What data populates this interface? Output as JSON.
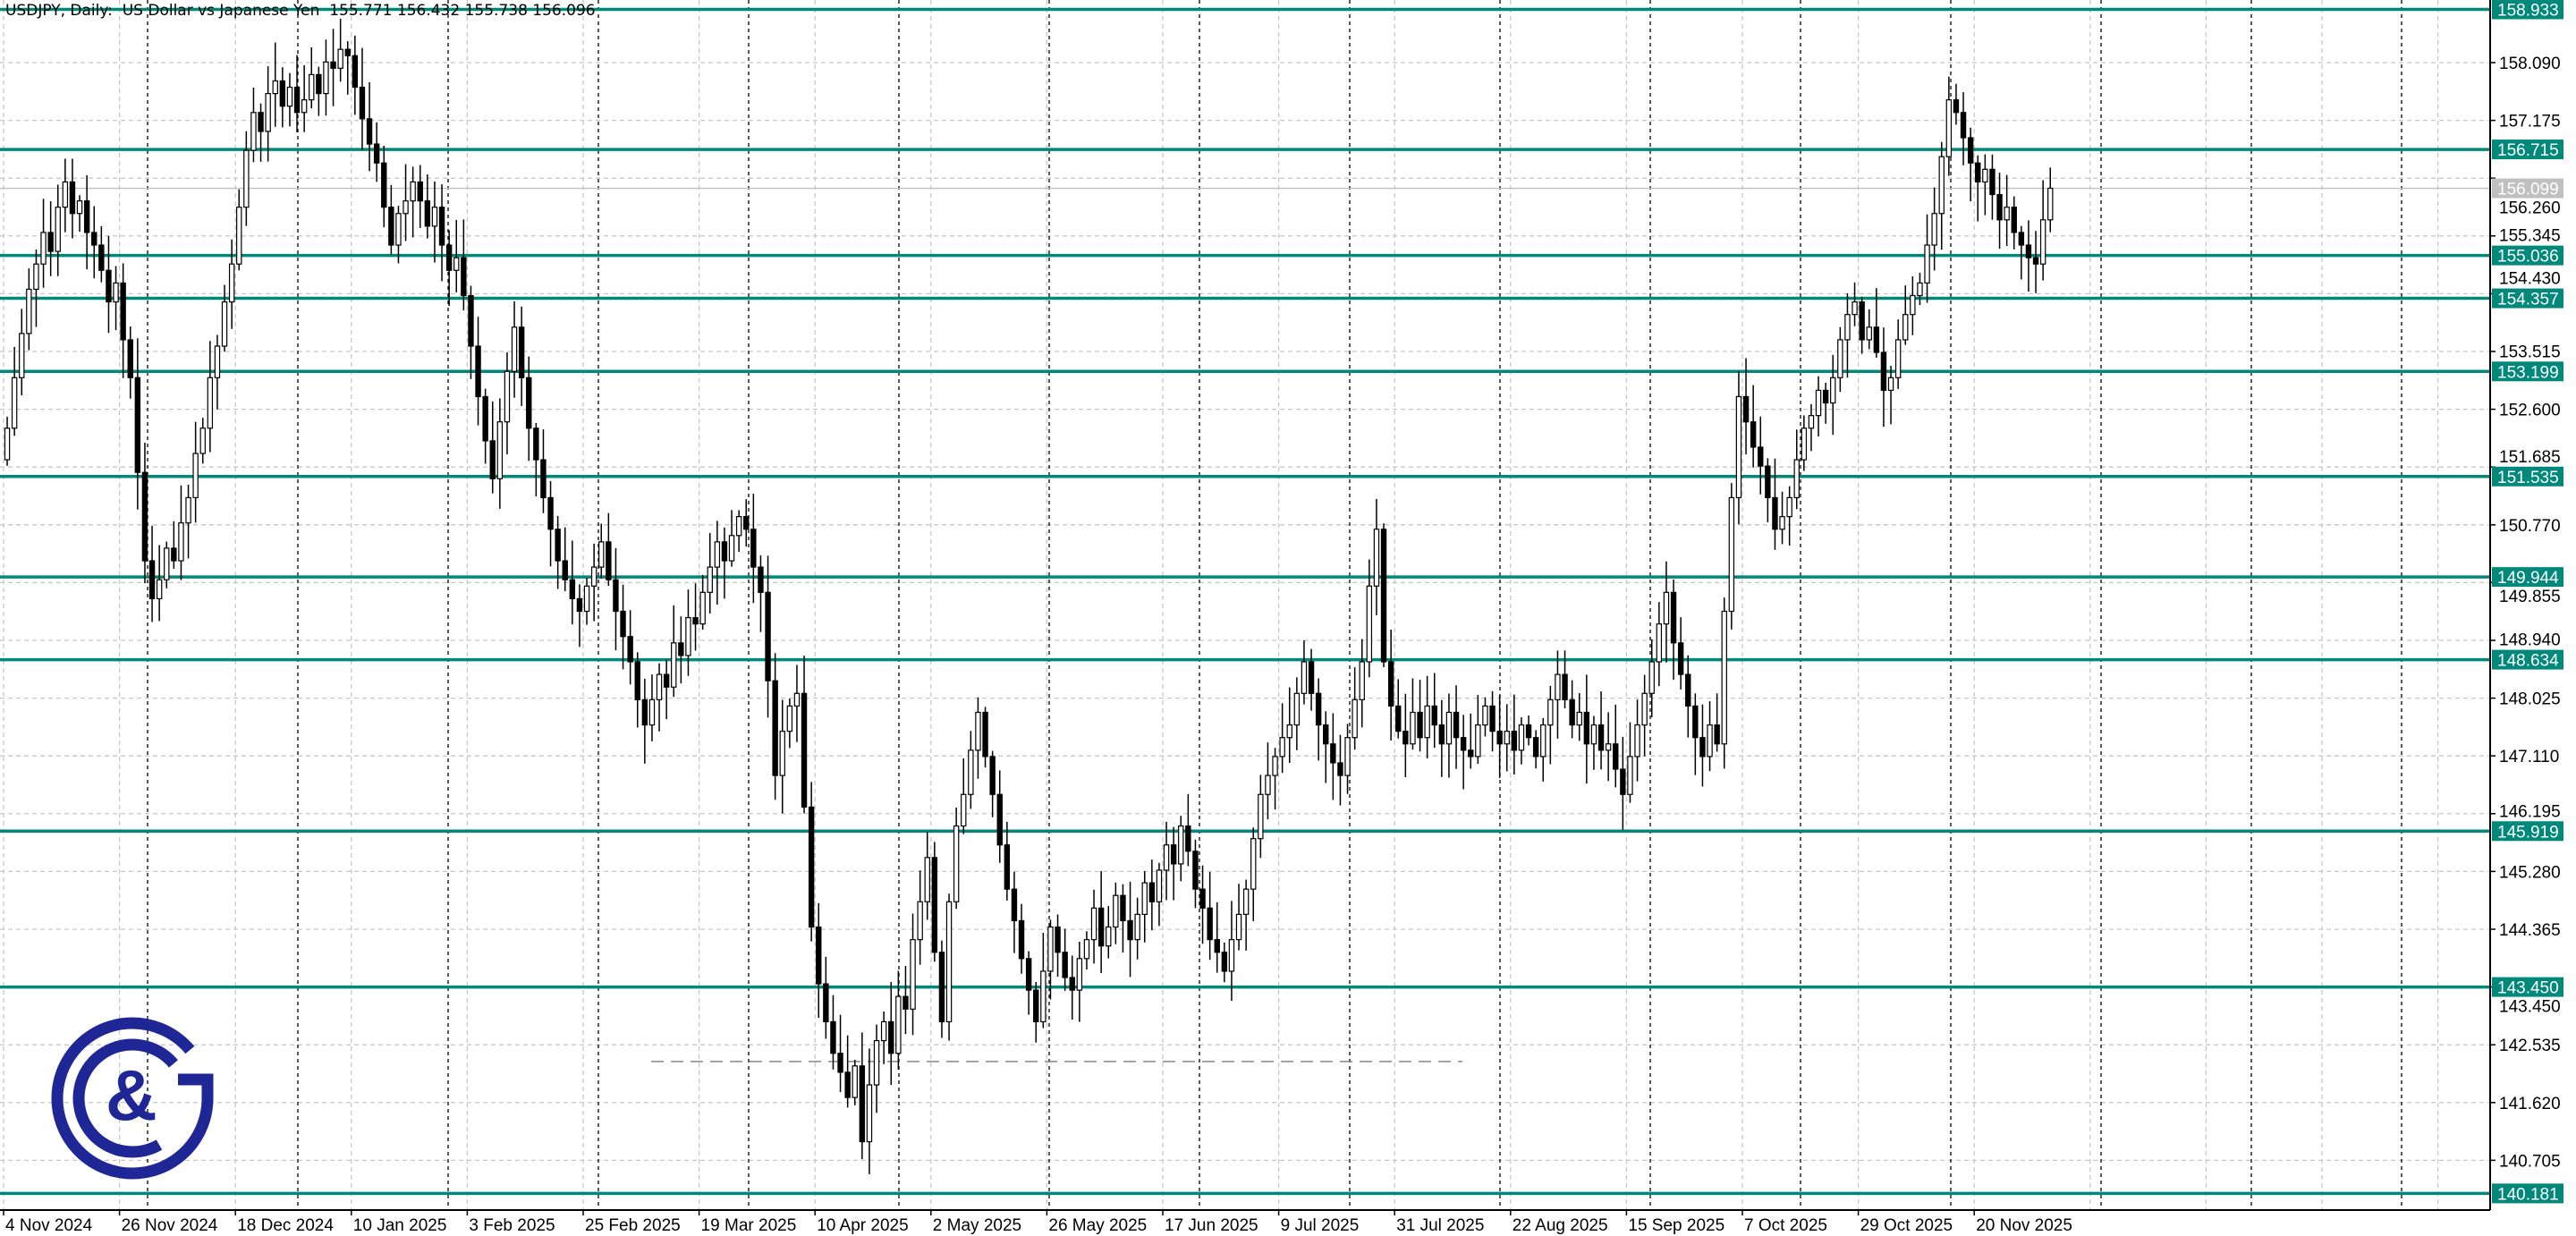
{
  "header": {
    "title": "USDJPY, Daily:  US Dollar vs Japanese Yen  155.771 156.432 155.738 156.096"
  },
  "colors": {
    "level_line": "#00897b",
    "level_label_bg": "#00897b",
    "current_price_bg": "#c0c0c0",
    "bull_body": "#ffffff",
    "bear_body": "#000000",
    "logo": "#1f2696"
  },
  "logo": {
    "text": "G&G",
    "icon": "gg-logo-icon"
  },
  "chart_data": {
    "type": "candlestick",
    "symbol": "USDJPY",
    "timeframe": "Daily",
    "ylim": [
      140.0,
      159.1
    ],
    "grid": true,
    "y_ticks": [
      "158.090",
      "157.175",
      "156.260",
      "155.345",
      "154.430",
      "153.515",
      "152.600",
      "151.685",
      "150.770",
      "149.855",
      "148.940",
      "148.025",
      "147.110",
      "146.195",
      "145.280",
      "144.365",
      "143.450",
      "142.535",
      "141.620",
      "140.705"
    ],
    "x_tick_labels": [
      "4 Nov 2024",
      "26 Nov 2024",
      "18 Dec 2024",
      "10 Jan 2025",
      "3 Feb 2025",
      "25 Feb 2025",
      "19 Mar 2025",
      "10 Apr 2025",
      "2 May 2025",
      "26 May 2025",
      "17 Jun 2025",
      "9 Jul 2025",
      "31 Jul 2025",
      "22 Aug 2025",
      "15 Sep 2025",
      "7 Oct 2025",
      "29 Oct 2025",
      "20 Nov 2025"
    ],
    "levels": [
      "158.933",
      "156.715",
      "155.036",
      "154.357",
      "153.199",
      "151.535",
      "149.944",
      "148.634",
      "145.919",
      "143.450",
      "140.181"
    ],
    "current_price": "156.099",
    "dashed_level": 142.27,
    "close": [
      152.3,
      153.1,
      153.8,
      154.5,
      154.9,
      155.4,
      155.1,
      155.8,
      156.2,
      155.7,
      155.9,
      155.4,
      155.2,
      154.8,
      154.3,
      154.6,
      153.7,
      153.1,
      151.6,
      150.2,
      149.6,
      149.9,
      150.4,
      150.2,
      150.8,
      151.2,
      151.9,
      152.3,
      153.1,
      153.6,
      154.3,
      154.9,
      155.8,
      156.7,
      157.3,
      157.0,
      157.6,
      157.8,
      157.4,
      157.7,
      157.3,
      157.5,
      157.9,
      157.6,
      158.1,
      158.0,
      158.3,
      158.2,
      157.7,
      157.2,
      156.8,
      156.5,
      155.8,
      155.2,
      155.7,
      155.9,
      156.2,
      155.9,
      155.5,
      155.8,
      155.2,
      154.8,
      155.0,
      154.4,
      153.6,
      152.8,
      152.1,
      151.5,
      152.4,
      153.2,
      153.9,
      153.1,
      152.3,
      151.8,
      151.2,
      150.7,
      150.2,
      149.9,
      149.6,
      149.4,
      149.8,
      150.1,
      150.5,
      149.9,
      149.4,
      149.0,
      148.6,
      148.0,
      147.6,
      148.0,
      148.4,
      148.2,
      148.9,
      148.7,
      149.3,
      149.2,
      149.7,
      150.1,
      150.5,
      150.2,
      150.6,
      150.9,
      150.7,
      150.1,
      149.7,
      148.3,
      146.8,
      147.5,
      147.9,
      148.1,
      146.3,
      144.4,
      143.5,
      142.9,
      142.4,
      142.1,
      141.7,
      142.2,
      141.0,
      141.9,
      142.6,
      142.9,
      142.4,
      143.3,
      143.1,
      144.2,
      144.8,
      145.5,
      144.0,
      142.9,
      144.8,
      146.0,
      146.5,
      147.2,
      147.8,
      147.1,
      146.5,
      145.7,
      145.0,
      144.5,
      143.9,
      143.4,
      142.9,
      143.7,
      144.4,
      144.0,
      143.6,
      143.4,
      143.9,
      144.2,
      144.7,
      144.1,
      144.4,
      144.9,
      144.5,
      144.2,
      144.6,
      145.1,
      144.8,
      145.3,
      145.7,
      145.4,
      146.0,
      145.6,
      145.0,
      144.7,
      144.2,
      144.0,
      143.7,
      144.2,
      144.6,
      145.0,
      145.8,
      146.5,
      146.8,
      147.1,
      147.4,
      147.6,
      148.1,
      148.6,
      148.1,
      147.6,
      147.3,
      147.0,
      146.8,
      147.4,
      148.0,
      148.6,
      149.8,
      150.7,
      148.6,
      147.9,
      147.5,
      147.3,
      147.8,
      147.4,
      147.9,
      147.6,
      147.3,
      147.8,
      147.4,
      147.2,
      147.1,
      147.6,
      147.9,
      147.5,
      147.3,
      147.5,
      147.2,
      147.6,
      147.4,
      147.1,
      147.6,
      148.0,
      148.4,
      148.0,
      147.6,
      147.8,
      147.3,
      147.6,
      147.2,
      147.3,
      146.9,
      146.5,
      147.1,
      147.6,
      148.1,
      148.6,
      149.2,
      149.7,
      148.9,
      148.4,
      147.9,
      147.4,
      147.1,
      147.6,
      147.3,
      149.4,
      151.2,
      152.8,
      152.4,
      152.0,
      151.7,
      151.2,
      150.7,
      150.9,
      151.2,
      151.8,
      152.3,
      152.5,
      152.9,
      152.7,
      153.1,
      153.7,
      154.1,
      154.3,
      153.7,
      153.9,
      153.5,
      152.9,
      153.1,
      153.7,
      154.1,
      154.4,
      154.6,
      155.2,
      155.7,
      156.6,
      157.5,
      157.3,
      156.9,
      156.5,
      156.2,
      156.4,
      156.0,
      155.6,
      155.8,
      155.4,
      155.2,
      155.0,
      154.9,
      155.6,
      156.1
    ]
  }
}
